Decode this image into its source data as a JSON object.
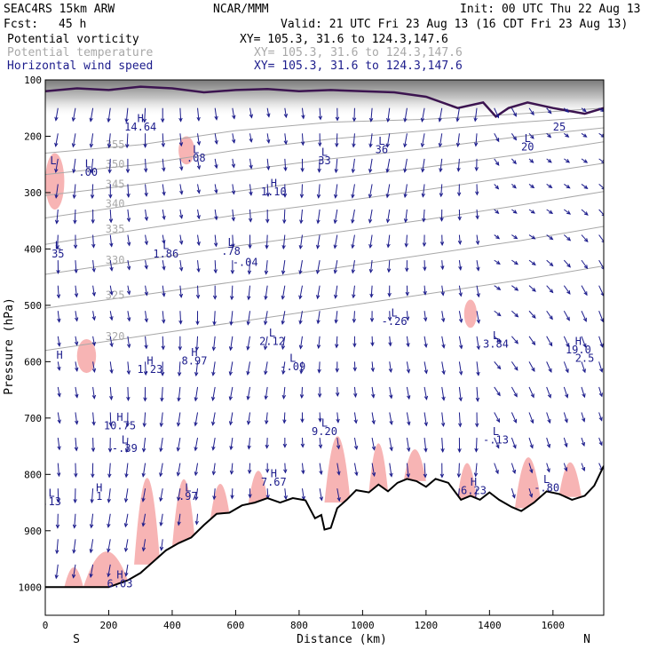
{
  "header": {
    "model": "SEAC4RS 15km ARW",
    "org": "NCAR/MMM",
    "init": "Init: 00 UTC Thu 22 Aug 13",
    "fcst_label": "Fcst:",
    "fcst_value": "45 h",
    "valid": "Valid: 21 UTC Fri 23 Aug 13 (16 CDT Fri 23 Aug 13)"
  },
  "fields": [
    {
      "name": "Potential vorticity",
      "xy": "XY= 105.3, 31.6 to 124.3,147.6",
      "color": "#000000"
    },
    {
      "name": "Potential temperature",
      "xy": "XY= 105.3, 31.6 to 124.3,147.6",
      "color": "#a8a8a8"
    },
    {
      "name": "Horizontal wind speed",
      "xy": "XY= 105.3, 31.6 to 124.3,147.6",
      "color": "#1c1c8c"
    }
  ],
  "colors": {
    "pv_shade": "#f7b4b4",
    "theta_contour": "#a8a8a8",
    "wind_vector": "#1c1c8c",
    "pv_contour": "#3c1450",
    "terrain": "#000000"
  },
  "chart_data": {
    "type": "cross-section",
    "xlabel": "Distance (km)",
    "ylabel": "Pressure (hPa)",
    "x_range": [
      0,
      1760
    ],
    "y_range": [
      1050,
      100
    ],
    "x_ticks": [
      0,
      200,
      400,
      600,
      800,
      1000,
      1200,
      1400,
      1600
    ],
    "y_ticks": [
      100,
      200,
      300,
      400,
      500,
      600,
      700,
      800,
      900,
      1000
    ],
    "x_end_labels": {
      "left": "S",
      "right": "N"
    },
    "terrain_surface": [
      [
        0,
        1000
      ],
      [
        100,
        1000
      ],
      [
        200,
        1000
      ],
      [
        260,
        988
      ],
      [
        300,
        975
      ],
      [
        340,
        955
      ],
      [
        380,
        935
      ],
      [
        420,
        922
      ],
      [
        460,
        912
      ],
      [
        500,
        890
      ],
      [
        540,
        870
      ],
      [
        580,
        868
      ],
      [
        620,
        855
      ],
      [
        660,
        850
      ],
      [
        700,
        842
      ],
      [
        740,
        850
      ],
      [
        780,
        842
      ],
      [
        820,
        846
      ],
      [
        850,
        878
      ],
      [
        870,
        872
      ],
      [
        880,
        898
      ],
      [
        900,
        895
      ],
      [
        920,
        860
      ],
      [
        950,
        845
      ],
      [
        980,
        828
      ],
      [
        1020,
        832
      ],
      [
        1050,
        818
      ],
      [
        1080,
        830
      ],
      [
        1110,
        815
      ],
      [
        1140,
        808
      ],
      [
        1170,
        812
      ],
      [
        1200,
        822
      ],
      [
        1230,
        808
      ],
      [
        1270,
        815
      ],
      [
        1310,
        845
      ],
      [
        1340,
        838
      ],
      [
        1370,
        845
      ],
      [
        1400,
        832
      ],
      [
        1430,
        845
      ],
      [
        1470,
        858
      ],
      [
        1500,
        865
      ],
      [
        1540,
        850
      ],
      [
        1580,
        830
      ],
      [
        1620,
        835
      ],
      [
        1660,
        845
      ],
      [
        1700,
        838
      ],
      [
        1730,
        820
      ],
      [
        1760,
        785
      ]
    ],
    "theta_contours": [
      {
        "label": "355",
        "points": [
          [
            0,
            230
          ],
          [
            300,
            215
          ],
          [
            600,
            190
          ],
          [
            900,
            175
          ],
          [
            1200,
            170
          ],
          [
            1500,
            160
          ],
          [
            1760,
            150
          ]
        ]
      },
      {
        "label": "350",
        "points": [
          [
            0,
            268
          ],
          [
            300,
            250
          ],
          [
            600,
            225
          ],
          [
            900,
            205
          ],
          [
            1200,
            190
          ],
          [
            1500,
            175
          ],
          [
            1760,
            165
          ]
        ]
      },
      {
        "label": "345",
        "points": [
          [
            0,
            305
          ],
          [
            300,
            285
          ],
          [
            600,
            262
          ],
          [
            900,
            240
          ],
          [
            1200,
            222
          ],
          [
            1500,
            200
          ],
          [
            1760,
            185
          ]
        ]
      },
      {
        "label": "340",
        "points": [
          [
            0,
            345
          ],
          [
            300,
            320
          ],
          [
            600,
            298
          ],
          [
            900,
            275
          ],
          [
            1200,
            255
          ],
          [
            1500,
            232
          ],
          [
            1760,
            210
          ]
        ]
      },
      {
        "label": "335",
        "points": [
          [
            0,
            392
          ],
          [
            300,
            365
          ],
          [
            600,
            340
          ],
          [
            900,
            318
          ],
          [
            1200,
            295
          ],
          [
            1500,
            270
          ],
          [
            1760,
            248
          ]
        ]
      },
      {
        "label": "330",
        "points": [
          [
            0,
            445
          ],
          [
            300,
            420
          ],
          [
            600,
            395
          ],
          [
            900,
            372
          ],
          [
            1200,
            348
          ],
          [
            1500,
            322
          ],
          [
            1760,
            298
          ]
        ]
      },
      {
        "label": "325",
        "points": [
          [
            0,
            505
          ],
          [
            300,
            482
          ],
          [
            600,
            458
          ],
          [
            900,
            435
          ],
          [
            1200,
            410
          ],
          [
            1500,
            385
          ],
          [
            1760,
            360
          ]
        ]
      },
      {
        "label": "320",
        "points": [
          [
            0,
            580
          ],
          [
            300,
            555
          ],
          [
            600,
            530
          ],
          [
            900,
            505
          ],
          [
            1200,
            480
          ],
          [
            1500,
            455
          ],
          [
            1760,
            430
          ]
        ]
      }
    ],
    "extrema_labels": [
      {
        "text": "H",
        "x": 300,
        "y": 175
      },
      {
        "text": "14.64",
        "x": 300,
        "y": 190
      },
      {
        "text": "L",
        "x": 25,
        "y": 250
      },
      {
        "text": "L",
        "x": 135,
        "y": 255
      },
      {
        "text": ".00",
        "x": 135,
        "y": 270
      },
      {
        "text": "L",
        "x": 475,
        "y": 230
      },
      {
        "text": ".08",
        "x": 475,
        "y": 245
      },
      {
        "text": "L",
        "x": 880,
        "y": 235
      },
      {
        "text": "33",
        "x": 880,
        "y": 250
      },
      {
        "text": "H",
        "x": 720,
        "y": 290
      },
      {
        "text": "1.10",
        "x": 720,
        "y": 305
      },
      {
        "text": "L",
        "x": 1060,
        "y": 215
      },
      {
        "text": "36",
        "x": 1060,
        "y": 230
      },
      {
        "text": "L",
        "x": 40,
        "y": 400
      },
      {
        "text": "35",
        "x": 40,
        "y": 415
      },
      {
        "text": "L",
        "x": 380,
        "y": 400
      },
      {
        "text": "1.86",
        "x": 380,
        "y": 415
      },
      {
        "text": "L",
        "x": 585,
        "y": 395
      },
      {
        "text": ".78",
        "x": 585,
        "y": 410
      },
      {
        "text": "-.04",
        "x": 630,
        "y": 430
      },
      {
        "text": "H",
        "x": 470,
        "y": 590
      },
      {
        "text": "8.97",
        "x": 470,
        "y": 605
      },
      {
        "text": "L",
        "x": 715,
        "y": 555
      },
      {
        "text": "2.12",
        "x": 715,
        "y": 570
      },
      {
        "text": "H",
        "x": 330,
        "y": 605
      },
      {
        "text": "1.23",
        "x": 330,
        "y": 620
      },
      {
        "text": "L",
        "x": 780,
        "y": 600
      },
      {
        "text": "-.09",
        "x": 780,
        "y": 615
      },
      {
        "text": "H",
        "x": 45,
        "y": 595
      },
      {
        "text": "H",
        "x": 235,
        "y": 705
      },
      {
        "text": "10.75",
        "x": 235,
        "y": 720
      },
      {
        "text": "L",
        "x": 250,
        "y": 745
      },
      {
        "text": "-.39",
        "x": 250,
        "y": 760
      },
      {
        "text": "L",
        "x": 880,
        "y": 715
      },
      {
        "text": "9.20",
        "x": 880,
        "y": 730
      },
      {
        "text": "L",
        "x": 1100,
        "y": 520
      },
      {
        "text": "-.26",
        "x": 1100,
        "y": 535
      },
      {
        "text": "L",
        "x": 1420,
        "y": 560
      },
      {
        "text": "3.84",
        "x": 1420,
        "y": 575
      },
      {
        "text": "L",
        "x": 1420,
        "y": 730
      },
      {
        "text": "-.13",
        "x": 1420,
        "y": 745
      },
      {
        "text": "H",
        "x": 720,
        "y": 805
      },
      {
        "text": "7.67",
        "x": 720,
        "y": 820
      },
      {
        "text": "H",
        "x": 1350,
        "y": 820
      },
      {
        "text": "6.23",
        "x": 1350,
        "y": 835
      },
      {
        "text": "L",
        "x": 1580,
        "y": 815
      },
      {
        "text": "-.80",
        "x": 1580,
        "y": 830
      },
      {
        "text": "L",
        "x": 20,
        "y": 840
      },
      {
        "text": ".13",
        "x": 20,
        "y": 855
      },
      {
        "text": "H",
        "x": 170,
        "y": 830
      },
      {
        "text": "1",
        "x": 170,
        "y": 845
      },
      {
        "text": "L",
        "x": 450,
        "y": 830
      },
      {
        "text": ".97",
        "x": 450,
        "y": 845
      },
      {
        "text": "H",
        "x": 235,
        "y": 985
      },
      {
        "text": "6.03",
        "x": 235,
        "y": 1000
      },
      {
        "text": "H",
        "x": 1680,
        "y": 570
      },
      {
        "text": "19.0",
        "x": 1680,
        "y": 585
      },
      {
        "text": "2.5",
        "x": 1700,
        "y": 600
      },
      {
        "text": "25",
        "x": 1620,
        "y": 190
      },
      {
        "text": "L",
        "x": 1520,
        "y": 210
      },
      {
        "text": "20",
        "x": 1520,
        "y": 225
      }
    ]
  }
}
